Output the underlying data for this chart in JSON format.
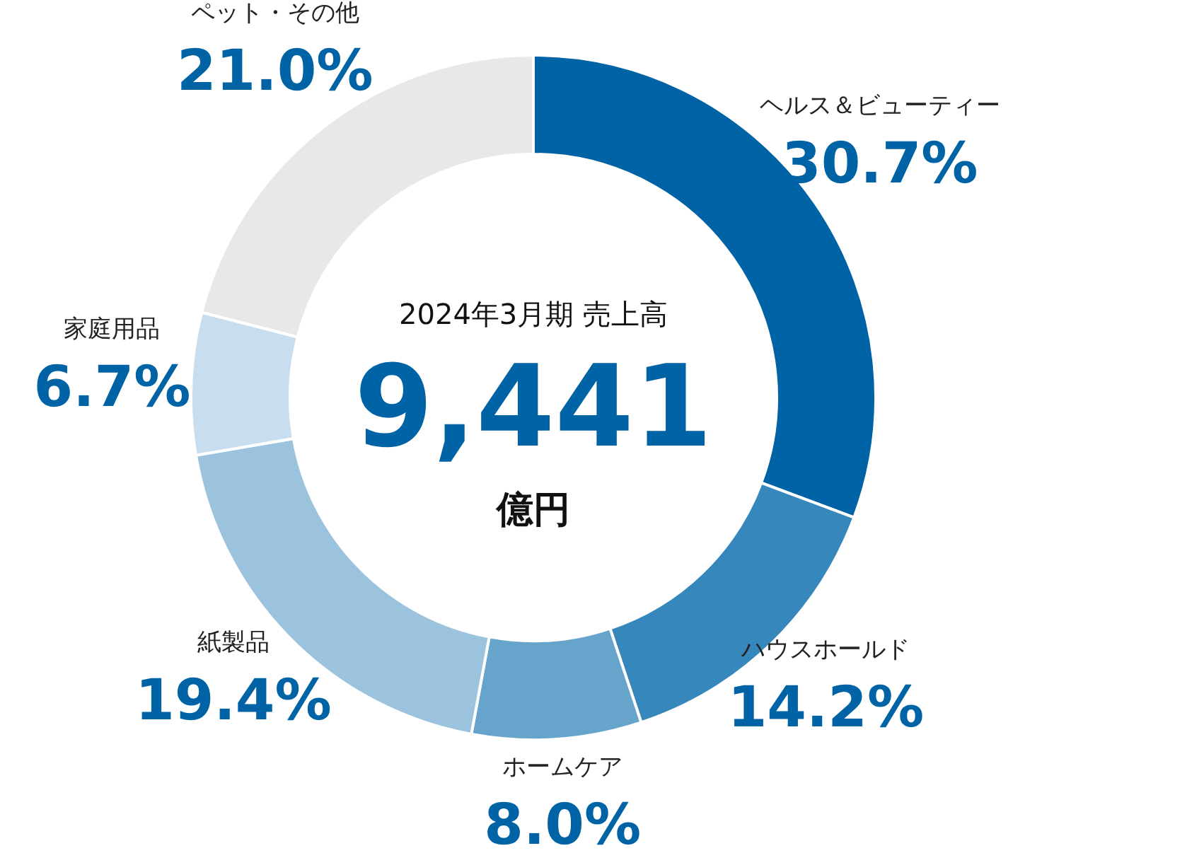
{
  "chart_data": {
    "type": "donut",
    "categories": [
      "ヘルス＆ビューティー",
      "ハウスホールド",
      "ホームケア",
      "紙製品",
      "家庭用品",
      "ペット・その他"
    ],
    "values": [
      30.7,
      14.2,
      8.0,
      19.4,
      6.7,
      21.0
    ],
    "value_labels": [
      "30.7%",
      "14.2%",
      "8.0%",
      "19.4%",
      "6.7%",
      "21.0%"
    ],
    "colors": [
      "#0063a6",
      "#3687bb",
      "#66a4cb",
      "#9cc3de",
      "#c8ddee",
      "#e8e8e8"
    ],
    "annotations": [
      "2024年3月期 売上高",
      "9,441",
      "億円"
    ],
    "legend": false
  }
}
